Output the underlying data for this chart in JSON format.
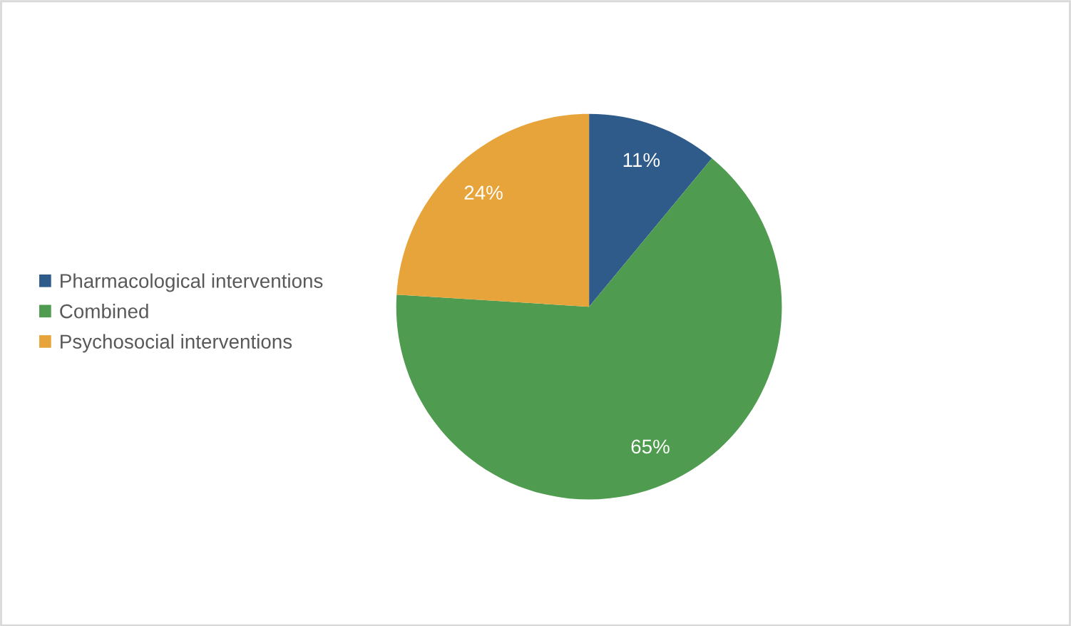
{
  "chart_data": {
    "type": "pie",
    "categories": [
      "Pharmacological interventions",
      "Combined",
      "Psychosocial interventions"
    ],
    "values": [
      11,
      65,
      24
    ],
    "colors": [
      "#2f5b8b",
      "#4f9b4f",
      "#e7a43b"
    ],
    "value_labels": [
      "11%",
      "65%",
      "24%"
    ],
    "legend": "left"
  }
}
